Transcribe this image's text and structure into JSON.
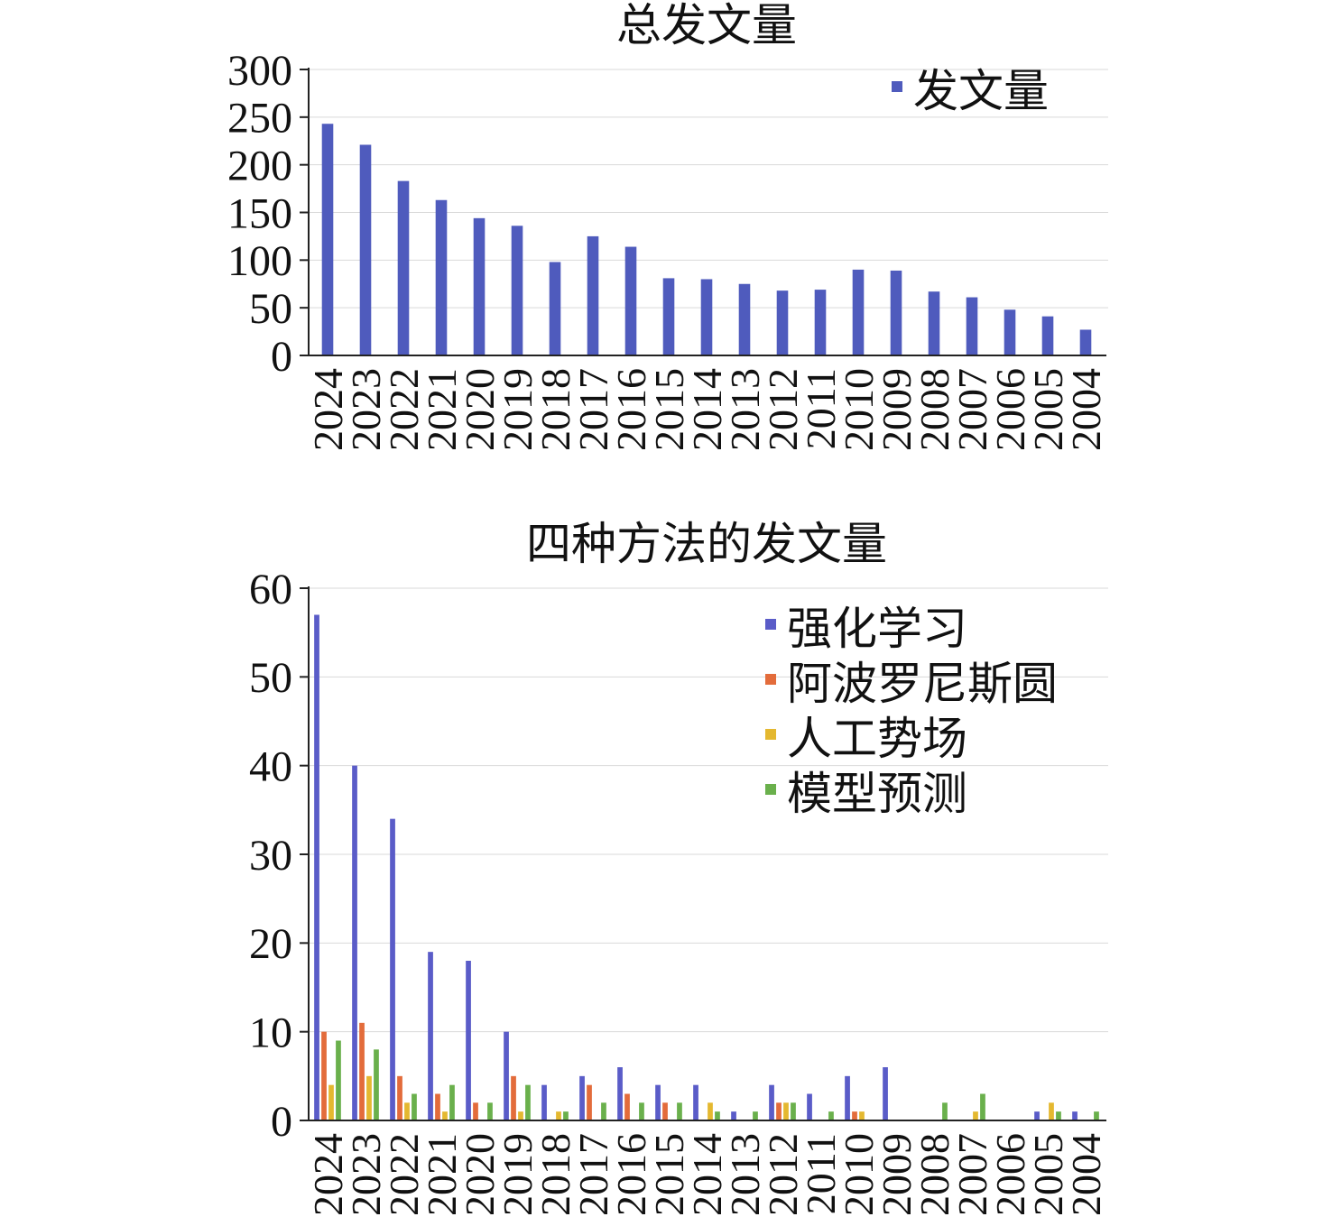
{
  "chart_data": [
    {
      "type": "bar",
      "title": "总发文量",
      "categories": [
        "2024",
        "2023",
        "2022",
        "2021",
        "2020",
        "2019",
        "2018",
        "2017",
        "2016",
        "2015",
        "2014",
        "2013",
        "2012",
        "2011",
        "2010",
        "2009",
        "2008",
        "2007",
        "2006",
        "2005",
        "2004"
      ],
      "series": [
        {
          "name": "发文量",
          "color": "#4f5bbd",
          "values": [
            243,
            221,
            183,
            163,
            144,
            136,
            98,
            125,
            114,
            81,
            80,
            75,
            68,
            69,
            90,
            89,
            67,
            61,
            48,
            41,
            27
          ]
        }
      ],
      "ylim": [
        0,
        300
      ],
      "yticks": [
        0,
        50,
        100,
        150,
        200,
        250,
        300
      ],
      "grid": true,
      "legend_position": "top-right"
    },
    {
      "type": "bar",
      "title": "四种方法的发文量",
      "categories": [
        "2024",
        "2023",
        "2022",
        "2021",
        "2020",
        "2019",
        "2018",
        "2017",
        "2016",
        "2015",
        "2014",
        "2013",
        "2012",
        "2011",
        "2010",
        "2009",
        "2008",
        "2007",
        "2006",
        "2005",
        "2004"
      ],
      "series": [
        {
          "name": "强化学习",
          "color": "#5a5cc8",
          "values": [
            57,
            40,
            34,
            19,
            18,
            10,
            4,
            5,
            6,
            4,
            4,
            1,
            4,
            3,
            5,
            6,
            0,
            0,
            0,
            1,
            1
          ]
        },
        {
          "name": "阿波罗尼斯圆",
          "color": "#e36c3b",
          "values": [
            10,
            11,
            5,
            3,
            2,
            5,
            0,
            4,
            3,
            2,
            0,
            0,
            2,
            0,
            1,
            0,
            0,
            0,
            0,
            0,
            0
          ]
        },
        {
          "name": "人工势场",
          "color": "#e4b830",
          "values": [
            4,
            5,
            2,
            1,
            0,
            1,
            1,
            0,
            0,
            0,
            2,
            0,
            2,
            0,
            1,
            0,
            0,
            1,
            0,
            2,
            0
          ]
        },
        {
          "name": "模型预测",
          "color": "#6ab04c",
          "values": [
            9,
            8,
            3,
            4,
            2,
            4,
            1,
            2,
            2,
            2,
            1,
            1,
            2,
            1,
            0,
            0,
            2,
            3,
            0,
            1,
            1
          ]
        }
      ],
      "ylim": [
        0,
        60
      ],
      "yticks": [
        0,
        10,
        20,
        30,
        40,
        50,
        60
      ],
      "grid": true,
      "legend_position": "top-right"
    }
  ]
}
